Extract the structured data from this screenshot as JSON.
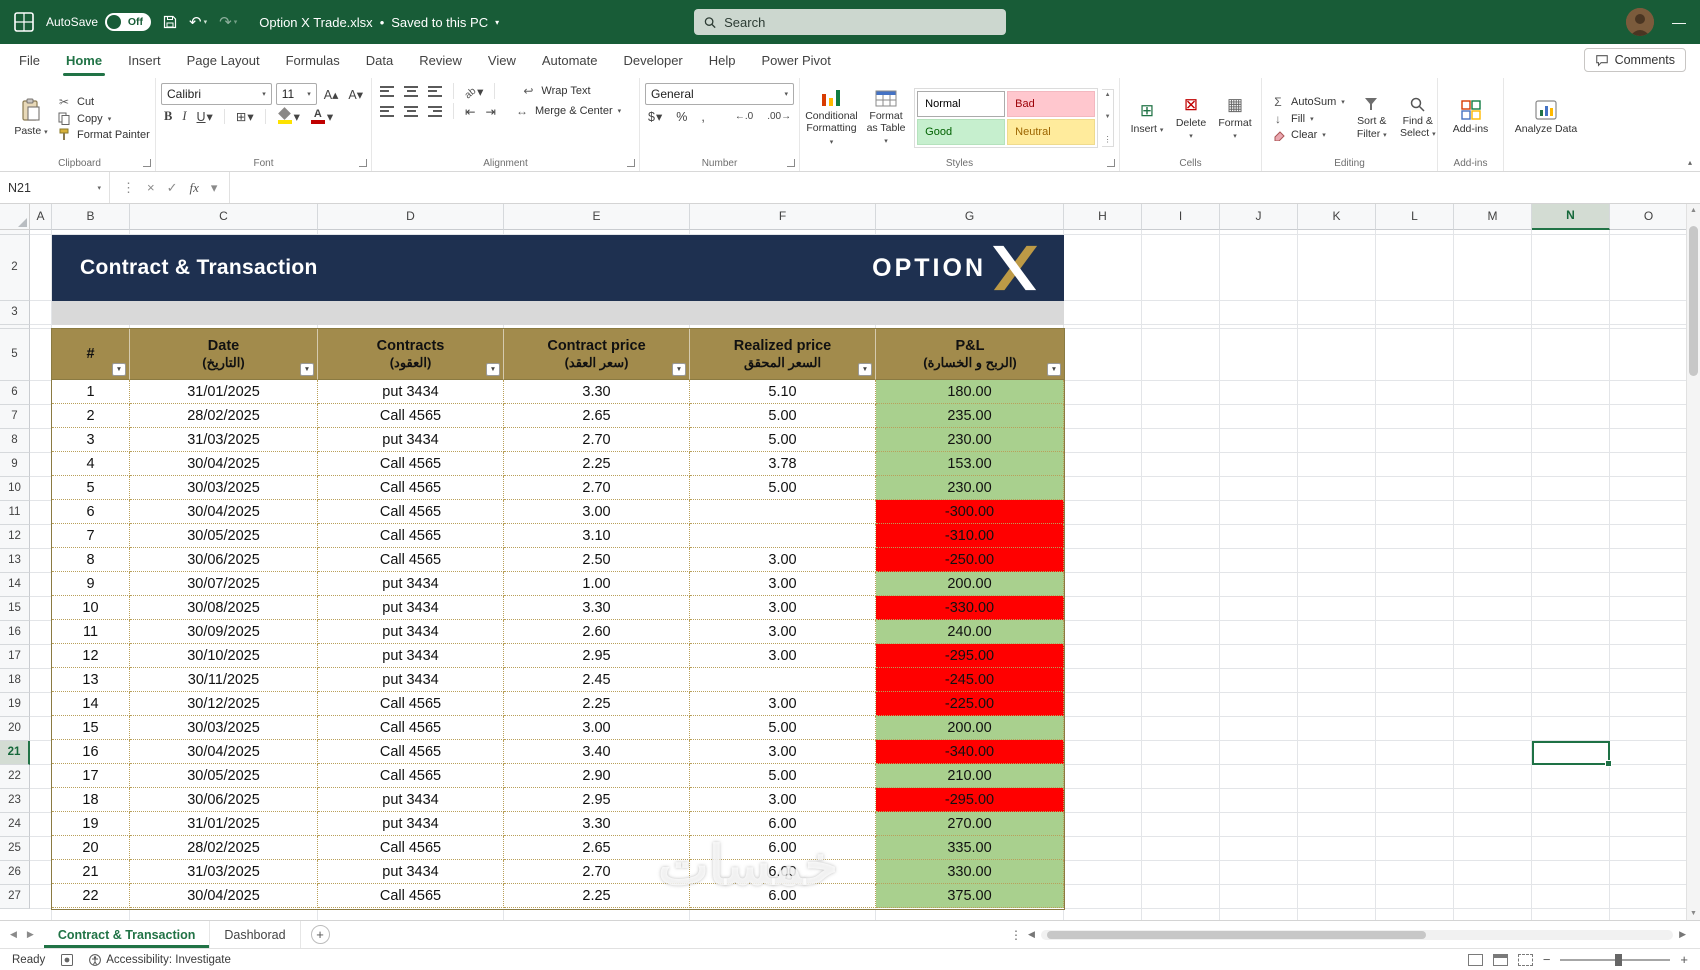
{
  "titlebar": {
    "autosave_label": "AutoSave",
    "autosave_state": "Off",
    "doc_title": "Option X Trade.xlsx",
    "separator": "•",
    "doc_status": "Saved to this PC",
    "search_placeholder": "Search"
  },
  "menu": {
    "tabs": [
      {
        "label": "File"
      },
      {
        "label": "Home",
        "active": true
      },
      {
        "label": "Insert"
      },
      {
        "label": "Page Layout"
      },
      {
        "label": "Formulas"
      },
      {
        "label": "Data"
      },
      {
        "label": "Review"
      },
      {
        "label": "View"
      },
      {
        "label": "Automate"
      },
      {
        "label": "Developer"
      },
      {
        "label": "Help"
      },
      {
        "label": "Power Pivot"
      }
    ],
    "comments_label": "Comments"
  },
  "ribbon": {
    "clipboard": {
      "label": "Clipboard",
      "paste": "Paste",
      "cut": "Cut",
      "copy": "Copy",
      "format_painter": "Format Painter"
    },
    "font": {
      "label": "Font",
      "name": "Calibri",
      "size": "11"
    },
    "alignment": {
      "label": "Alignment",
      "wrap": "Wrap Text",
      "merge": "Merge & Center"
    },
    "number": {
      "label": "Number",
      "format": "General"
    },
    "styles": {
      "label": "Styles",
      "conditional": "Conditional Formatting",
      "format_table": "Format as Table",
      "gallery": [
        {
          "label": "Normal",
          "bg": "#ffffff",
          "fg": "#000000",
          "border": "#ababab"
        },
        {
          "label": "Bad",
          "bg": "#FFC7CE",
          "fg": "#9C0006",
          "border": "#f3b8c0"
        },
        {
          "label": "Good",
          "bg": "#C6EFCE",
          "fg": "#006100",
          "border": "#b5e2bd"
        },
        {
          "label": "Neutral",
          "bg": "#FFEB9C",
          "fg": "#9C6500",
          "border": "#efdb8e"
        }
      ]
    },
    "cells": {
      "label": "Cells",
      "insert": "Insert",
      "delete": "Delete",
      "format": "Format"
    },
    "editing": {
      "label": "Editing",
      "autosum": "AutoSum",
      "fill": "Fill",
      "clear": "Clear",
      "sort": "Sort & Filter",
      "find": "Find & Select"
    },
    "addins": {
      "label": "Add-ins",
      "button": "Add-ins"
    },
    "analyze": {
      "button": "Analyze Data"
    }
  },
  "formula_bar": {
    "name_box": "N21",
    "fx_label": "fx",
    "value": ""
  },
  "grid": {
    "columns": [
      "A",
      "B",
      "C",
      "D",
      "E",
      "F",
      "G",
      "H",
      "I",
      "J",
      "K",
      "L",
      "M",
      "N",
      "O"
    ],
    "rows": [
      2,
      3,
      5,
      6,
      7,
      8,
      9,
      10,
      11,
      12,
      13,
      14,
      15,
      16,
      17,
      18,
      19,
      20,
      21,
      22,
      23,
      24,
      25,
      26,
      27
    ],
    "selected_column": "N",
    "selected_row": 21
  },
  "banner": {
    "title": "Contract & Transaction",
    "logo_text": "OPTION"
  },
  "table": {
    "headers": [
      {
        "en": "#",
        "ar": ""
      },
      {
        "en": "Date",
        "ar": "(التاريخ)"
      },
      {
        "en": "Contracts",
        "ar": "(العقود)"
      },
      {
        "en": "Contract price",
        "ar": "(سعر العقد)"
      },
      {
        "en": "Realized price",
        "ar": "السعر المحقق"
      },
      {
        "en": "P&L",
        "ar": "(الربح و الخسارة)"
      }
    ],
    "rows": [
      {
        "n": 1,
        "date": "31/01/2025",
        "contract": "put 3434",
        "price": "3.30",
        "realized": "5.10",
        "pnl": "180.00",
        "state": "pos"
      },
      {
        "n": 2,
        "date": "28/02/2025",
        "contract": "Call 4565",
        "price": "2.65",
        "realized": "5.00",
        "pnl": "235.00",
        "state": "pos"
      },
      {
        "n": 3,
        "date": "31/03/2025",
        "contract": "put 3434",
        "price": "2.70",
        "realized": "5.00",
        "pnl": "230.00",
        "state": "pos"
      },
      {
        "n": 4,
        "date": "30/04/2025",
        "contract": "Call 4565",
        "price": "2.25",
        "realized": "3.78",
        "pnl": "153.00",
        "state": "pos"
      },
      {
        "n": 5,
        "date": "30/03/2025",
        "contract": "Call 4565",
        "price": "2.70",
        "realized": "5.00",
        "pnl": "230.00",
        "state": "pos"
      },
      {
        "n": 6,
        "date": "30/04/2025",
        "contract": "Call 4565",
        "price": "3.00",
        "realized": "",
        "pnl": "-300.00",
        "state": "neg"
      },
      {
        "n": 7,
        "date": "30/05/2025",
        "contract": "Call 4565",
        "price": "3.10",
        "realized": "",
        "pnl": "-310.00",
        "state": "neg"
      },
      {
        "n": 8,
        "date": "30/06/2025",
        "contract": "Call 4565",
        "price": "2.50",
        "realized": "3.00",
        "pnl": "-250.00",
        "state": "neg"
      },
      {
        "n": 9,
        "date": "30/07/2025",
        "contract": "put 3434",
        "price": "1.00",
        "realized": "3.00",
        "pnl": "200.00",
        "state": "pos"
      },
      {
        "n": 10,
        "date": "30/08/2025",
        "contract": "put 3434",
        "price": "3.30",
        "realized": "3.00",
        "pnl": "-330.00",
        "state": "neg"
      },
      {
        "n": 11,
        "date": "30/09/2025",
        "contract": "put 3434",
        "price": "2.60",
        "realized": "3.00",
        "pnl": "240.00",
        "state": "pos"
      },
      {
        "n": 12,
        "date": "30/10/2025",
        "contract": "put 3434",
        "price": "2.95",
        "realized": "3.00",
        "pnl": "-295.00",
        "state": "neg"
      },
      {
        "n": 13,
        "date": "30/11/2025",
        "contract": "put 3434",
        "price": "2.45",
        "realized": "",
        "pnl": "-245.00",
        "state": "neg"
      },
      {
        "n": 14,
        "date": "30/12/2025",
        "contract": "Call 4565",
        "price": "2.25",
        "realized": "3.00",
        "pnl": "-225.00",
        "state": "neg"
      },
      {
        "n": 15,
        "date": "30/03/2025",
        "contract": "Call 4565",
        "price": "3.00",
        "realized": "5.00",
        "pnl": "200.00",
        "state": "pos"
      },
      {
        "n": 16,
        "date": "30/04/2025",
        "contract": "Call 4565",
        "price": "3.40",
        "realized": "3.00",
        "pnl": "-340.00",
        "state": "neg"
      },
      {
        "n": 17,
        "date": "30/05/2025",
        "contract": "Call 4565",
        "price": "2.90",
        "realized": "5.00",
        "pnl": "210.00",
        "state": "pos"
      },
      {
        "n": 18,
        "date": "30/06/2025",
        "contract": "put 3434",
        "price": "2.95",
        "realized": "3.00",
        "pnl": "-295.00",
        "state": "neg"
      },
      {
        "n": 19,
        "date": "31/01/2025",
        "contract": "put 3434",
        "price": "3.30",
        "realized": "6.00",
        "pnl": "270.00",
        "state": "pos"
      },
      {
        "n": 20,
        "date": "28/02/2025",
        "contract": "Call 4565",
        "price": "2.65",
        "realized": "6.00",
        "pnl": "335.00",
        "state": "pos"
      },
      {
        "n": 21,
        "date": "31/03/2025",
        "contract": "put 3434",
        "price": "2.70",
        "realized": "6.00",
        "pnl": "330.00",
        "state": "pos"
      },
      {
        "n": 22,
        "date": "30/04/2025",
        "contract": "Call 4565",
        "price": "2.25",
        "realized": "6.00",
        "pnl": "375.00",
        "state": "pos"
      }
    ],
    "colors": {
      "positive_fill": "#A9D08E",
      "negative_fill": "#FF0000",
      "header_fill": "#A28B4C",
      "banner_fill": "#1E3050",
      "accent_green": "#217346"
    }
  },
  "sheet_tabs": {
    "tabs": [
      {
        "label": "Contract & Transaction",
        "active": true
      },
      {
        "label": "Dashborad"
      }
    ]
  },
  "status_bar": {
    "ready": "Ready",
    "accessibility": "Accessibility: Investigate"
  },
  "watermark": {
    "text": "خمسات"
  },
  "icons": {
    "dropdown": "▾",
    "cut": "✂",
    "bold": "B",
    "italic": "I",
    "underline": "U",
    "borders": "⊞",
    "accounting": "$",
    "percent": "%",
    "comma": ",",
    "inc_decimal": "←.0",
    "dec_decimal": ".00→",
    "autosum": "Σ",
    "fill_down": "↓",
    "wrap": "↩",
    "merge": "↔",
    "orientation": "ab",
    "indent_dec": "⇤",
    "indent_inc": "⇥",
    "insert": "⊞",
    "delete": "⊠",
    "format": "▦",
    "undo": "↶",
    "redo": "↷",
    "minimize": "—",
    "cancel": "×",
    "checkmark": "✓",
    "filter": "▼",
    "up": "▲",
    "down": "▼",
    "left": "◀",
    "right": "▶",
    "add_sheet": "+",
    "more": "⋮",
    "zoom_out": "−",
    "zoom_in": "+",
    "collapse": "▴",
    "font_bigger": "A▴",
    "font_smaller": "A▾"
  }
}
